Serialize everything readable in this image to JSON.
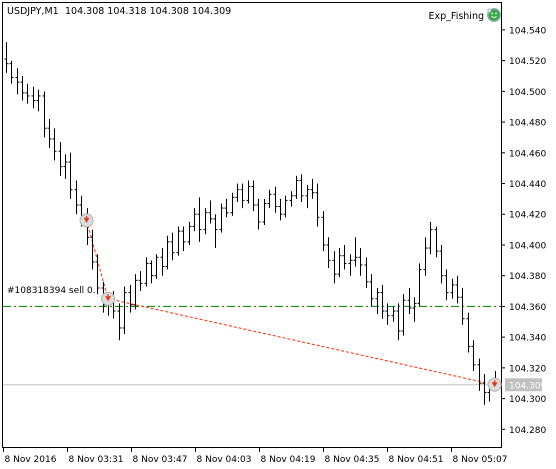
{
  "header": {
    "symbol": "USDJPY,M1",
    "ohlc": "104.308 104.318 104.308 104.309",
    "expert_name": "Exp_Fishing"
  },
  "trade_label": "#108318394 sell 0.",
  "colors": {
    "background": "#ffffff",
    "frame": "#000000",
    "bars": "#000000",
    "trade_line": "#008000",
    "dotted_trade": "#ff2a00",
    "marker": "#e03a1a",
    "bid_line": "#c0c0c0",
    "bid_tag": "#c0c0c0"
  },
  "icons": {
    "expert": "expert-advisor-smiley-icon",
    "entry": "order-arrow-icon"
  },
  "chart_data": {
    "type": "ohlc",
    "y_ticks": [
      "104.540",
      "104.520",
      "104.500",
      "104.480",
      "104.460",
      "104.440",
      "104.420",
      "104.400",
      "104.380",
      "104.360",
      "104.340",
      "104.320",
      "104.300",
      "104.280"
    ],
    "y_range": [
      104.2685,
      104.5575
    ],
    "x_ticks": [
      "8 Nov 2016",
      "8 Nov 03:31",
      "8 Nov 03:47",
      "8 Nov 04:03",
      "8 Nov 04:19",
      "8 Nov 04:35",
      "8 Nov 04:51",
      "8 Nov 05:07"
    ],
    "current_price": "104.309",
    "sell_level": 104.36,
    "bid": 104.309,
    "bars": [
      [
        104.521,
        104.532,
        104.512,
        104.518
      ],
      [
        104.518,
        104.52,
        104.505,
        104.509
      ],
      [
        104.509,
        104.515,
        104.498,
        104.506
      ],
      [
        104.506,
        104.51,
        104.494,
        104.499
      ],
      [
        104.499,
        104.505,
        104.492,
        104.497
      ],
      [
        104.497,
        104.503,
        104.489,
        104.494
      ],
      [
        104.494,
        104.501,
        104.487,
        104.497
      ],
      [
        104.497,
        104.5,
        104.47,
        104.476
      ],
      [
        104.476,
        104.482,
        104.463,
        104.469
      ],
      [
        104.469,
        104.476,
        104.455,
        104.461
      ],
      [
        104.461,
        104.467,
        104.445,
        104.451
      ],
      [
        104.451,
        104.459,
        104.443,
        104.454
      ],
      [
        104.454,
        104.46,
        104.43,
        104.436
      ],
      [
        104.436,
        104.442,
        104.42,
        104.426
      ],
      [
        104.426,
        104.432,
        104.412,
        104.418
      ],
      [
        104.418,
        104.424,
        104.4,
        104.405
      ],
      [
        104.405,
        104.41,
        104.384,
        104.389
      ],
      [
        104.389,
        104.394,
        104.368,
        104.372
      ],
      [
        104.372,
        104.376,
        104.356,
        104.361
      ],
      [
        104.361,
        104.368,
        104.354,
        104.364
      ],
      [
        104.364,
        104.37,
        104.352,
        104.357
      ],
      [
        104.357,
        104.362,
        104.338,
        104.346
      ],
      [
        104.346,
        104.373,
        104.342,
        104.369
      ],
      [
        104.369,
        104.374,
        104.356,
        104.361
      ],
      [
        104.361,
        104.381,
        104.358,
        104.377
      ],
      [
        104.377,
        104.383,
        104.37,
        104.375
      ],
      [
        104.375,
        104.392,
        104.373,
        104.388
      ],
      [
        104.388,
        104.39,
        104.375,
        104.38
      ],
      [
        104.38,
        104.394,
        104.378,
        104.392
      ],
      [
        104.392,
        104.398,
        104.38,
        104.386
      ],
      [
        104.386,
        104.406,
        104.384,
        104.402
      ],
      [
        104.402,
        104.408,
        104.39,
        104.395
      ],
      [
        104.395,
        104.412,
        104.393,
        104.409
      ],
      [
        104.409,
        104.412,
        104.396,
        104.402
      ],
      [
        104.402,
        104.415,
        104.4,
        104.412
      ],
      [
        104.412,
        104.424,
        104.409,
        104.42
      ],
      [
        104.42,
        104.431,
        104.402,
        104.41
      ],
      [
        104.41,
        104.424,
        104.407,
        104.421
      ],
      [
        104.421,
        104.429,
        104.414,
        104.417
      ],
      [
        104.417,
        104.42,
        104.398,
        104.41
      ],
      [
        104.41,
        104.427,
        104.408,
        104.424
      ],
      [
        104.424,
        104.43,
        104.418,
        104.421
      ],
      [
        104.421,
        104.434,
        104.419,
        104.431
      ],
      [
        104.431,
        104.44,
        104.428,
        104.436
      ],
      [
        104.436,
        104.44,
        104.424,
        104.429
      ],
      [
        104.429,
        104.442,
        104.427,
        104.438
      ],
      [
        104.438,
        104.442,
        104.422,
        104.426
      ],
      [
        104.426,
        104.43,
        104.41,
        104.415
      ],
      [
        104.415,
        104.43,
        104.413,
        104.427
      ],
      [
        104.427,
        104.436,
        104.424,
        104.433
      ],
      [
        104.433,
        104.438,
        104.421,
        104.425
      ],
      [
        104.425,
        104.43,
        104.416,
        104.42
      ],
      [
        104.42,
        104.432,
        104.418,
        104.429
      ],
      [
        104.429,
        104.435,
        104.425,
        104.432
      ],
      [
        104.432,
        104.445,
        104.43,
        104.442
      ],
      [
        104.442,
        104.446,
        104.428,
        104.432
      ],
      [
        104.432,
        104.439,
        104.424,
        104.436
      ],
      [
        104.436,
        104.443,
        104.43,
        104.434
      ],
      [
        104.434,
        104.44,
        104.412,
        104.418
      ],
      [
        104.418,
        104.422,
        104.396,
        104.4
      ],
      [
        104.4,
        104.405,
        104.385,
        104.39
      ],
      [
        104.39,
        104.396,
        104.375,
        104.381
      ],
      [
        104.381,
        104.398,
        104.379,
        104.393
      ],
      [
        104.393,
        104.4,
        104.384,
        104.388
      ],
      [
        104.388,
        104.394,
        104.38,
        104.39
      ],
      [
        104.39,
        104.405,
        104.386,
        104.392
      ],
      [
        104.392,
        104.398,
        104.38,
        104.387
      ],
      [
        104.387,
        104.392,
        104.372,
        104.376
      ],
      [
        104.376,
        104.381,
        104.36,
        104.365
      ],
      [
        104.365,
        104.372,
        104.355,
        104.369
      ],
      [
        104.369,
        104.374,
        104.352,
        104.357
      ],
      [
        104.357,
        104.362,
        104.348,
        104.354
      ],
      [
        104.354,
        104.36,
        104.35,
        104.357
      ],
      [
        104.357,
        104.362,
        104.338,
        104.344
      ],
      [
        104.344,
        104.368,
        104.341,
        104.364
      ],
      [
        104.364,
        104.372,
        104.355,
        104.359
      ],
      [
        104.359,
        104.366,
        104.35,
        104.362
      ],
      [
        104.362,
        104.388,
        104.36,
        104.384
      ],
      [
        104.384,
        104.405,
        104.38,
        104.398
      ],
      [
        104.398,
        104.415,
        104.394,
        104.41
      ],
      [
        104.41,
        104.412,
        104.392,
        104.396
      ],
      [
        104.396,
        104.4,
        104.375,
        104.38
      ],
      [
        104.38,
        104.384,
        104.364,
        104.369
      ],
      [
        104.369,
        104.378,
        104.365,
        104.374
      ],
      [
        104.374,
        104.38,
        104.362,
        104.366
      ],
      [
        104.366,
        104.372,
        104.348,
        104.352
      ],
      [
        104.352,
        104.356,
        104.33,
        104.334
      ],
      [
        104.334,
        104.338,
        104.318,
        104.322
      ],
      [
        104.322,
        104.326,
        104.305,
        104.31
      ],
      [
        104.31,
        104.316,
        104.296,
        104.304
      ],
      [
        104.304,
        104.312,
        104.298,
        104.31
      ],
      [
        104.31,
        104.318,
        104.308,
        104.309
      ]
    ],
    "trades": [
      {
        "type": "sell-entry",
        "bar": 15,
        "price": 104.416
      },
      {
        "type": "sell-entry",
        "bar": 19,
        "price": 104.365
      },
      {
        "type": "exit",
        "bar": 91,
        "price": 104.309
      }
    ]
  }
}
